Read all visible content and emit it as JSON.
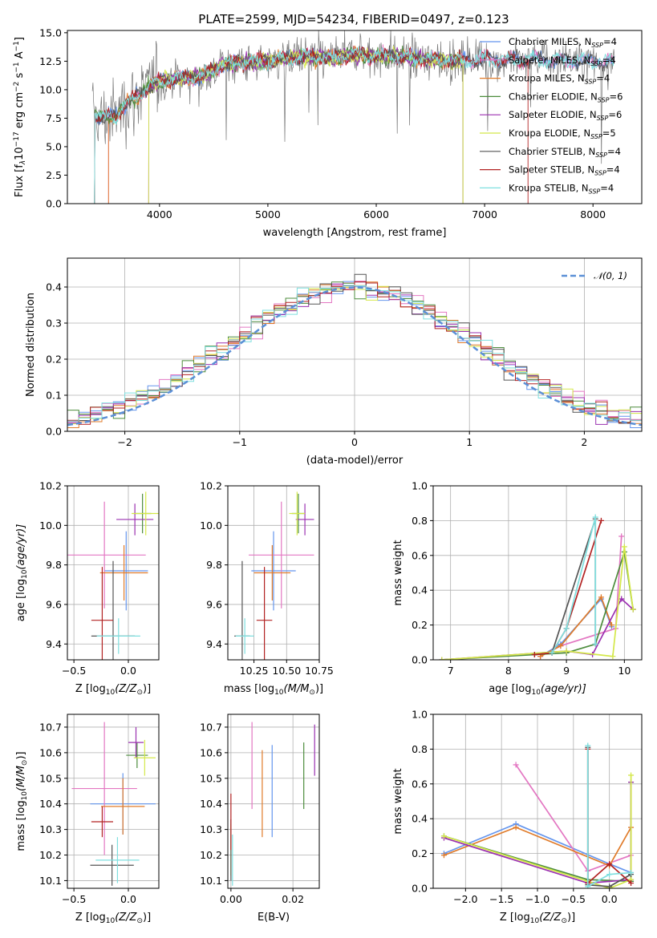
{
  "title": "PLATE=2599, MJD=54234, FIBERID=0497, z=0.123",
  "colors": {
    "chabrier_miles": "#6495ed",
    "salpeter_miles": "#e377c2",
    "kroupa_miles": "#e07b2a",
    "chabrier_elodie": "#4c8c3c",
    "salpeter_elodie": "#9b30b0",
    "kroupa_elodie": "#d4e84a",
    "chabrier_stelib": "#555555",
    "salpeter_stelib": "#b22222",
    "kroupa_stelib": "#7fdfdf"
  },
  "chart_data": [
    {
      "type": "line",
      "xlabel": "wavelength [Angstrom, rest frame]",
      "ylabel": "Flux [f$_\\lambda$10$^{-17}$ erg cm$^{-2}$ s$^{-1}$ A$^{-1}$]",
      "ylabel_main": "Flux [f",
      "ylabel_sub1": "λ",
      "ylabel_mid1": "10",
      "ylabel_sup1": "−17",
      "ylabel_mid2": " erg cm",
      "ylabel_sup2": "−2",
      "ylabel_mid3": " s",
      "ylabel_sup3": "−1",
      "ylabel_mid4": " A",
      "ylabel_sup4": "−1",
      "ylabel_end": "]",
      "xlim": [
        3150,
        8450
      ],
      "ylim": [
        0,
        15.2
      ],
      "xticks": [
        "4000",
        "5000",
        "6000",
        "7000",
        "8000"
      ],
      "xtick_values": [
        4000,
        5000,
        6000,
        7000,
        8000
      ],
      "yticks": [
        "0.0",
        "2.5",
        "5.0",
        "7.5",
        "10.0",
        "12.5",
        "15.0"
      ],
      "ytick_values": [
        0,
        2.5,
        5,
        7.5,
        10,
        12.5,
        15
      ],
      "x_range": [
        3380,
        8200
      ],
      "continuum": {
        "x": [
          3380,
          3500,
          3600,
          3700,
          3800,
          3900,
          4000,
          4200,
          4400,
          4600,
          4800,
          5000,
          5200,
          5400,
          5600,
          5800,
          6000,
          6200,
          6400,
          6600,
          6800,
          7000,
          7200,
          7400,
          7600,
          7800,
          8000,
          8200
        ],
        "y": [
          7.8,
          7.5,
          7.8,
          8.8,
          9.5,
          10.3,
          10.8,
          11.0,
          11.2,
          12.3,
          12.4,
          12.5,
          12.8,
          12.9,
          12.8,
          13.1,
          12.9,
          13.0,
          12.7,
          12.6,
          12.6,
          12.7,
          12.6,
          12.7,
          12.6,
          12.6,
          12.5,
          12.4
        ]
      },
      "legend_placement": "upper right",
      "legend": [
        {
          "main": "Chabrier MILES, N",
          "sub": "SSP",
          "end": "=4",
          "key": "chabrier_miles"
        },
        {
          "main": "Salpeter MILES, N",
          "sub": "SSP",
          "end": "=4",
          "key": "salpeter_miles"
        },
        {
          "main": "Kroupa MILES, N",
          "sub": "SSP",
          "end": "=4",
          "key": "kroupa_miles"
        },
        {
          "main": "Chabrier ELODIE, N",
          "sub": "SSP",
          "end": "=6",
          "key": "chabrier_elodie"
        },
        {
          "main": "Salpeter ELODIE, N",
          "sub": "SSP",
          "end": "=6",
          "key": "salpeter_elodie"
        },
        {
          "main": "Kroupa ELODIE, N",
          "sub": "SSP",
          "end": "=5",
          "key": "kroupa_elodie"
        },
        {
          "main": "Chabrier STELIB, N",
          "sub": "SSP",
          "end": "=4",
          "key": "chabrier_stelib"
        },
        {
          "main": "Salpeter STELIB, N",
          "sub": "SSP",
          "end": "=4",
          "key": "salpeter_stelib"
        },
        {
          "main": "Kroupa STELIB, N",
          "sub": "SSP",
          "end": "=4",
          "key": "kroupa_stelib"
        }
      ]
    },
    {
      "type": "histogram",
      "xlabel": "(data-model)/error",
      "ylabel": "Normed distribution",
      "xlim": [
        -2.5,
        2.5
      ],
      "ylim": [
        0,
        0.48
      ],
      "xticks": [
        "−2",
        "−1",
        "0",
        "1",
        "2"
      ],
      "xtick_values": [
        -2,
        -1,
        0,
        1,
        2
      ],
      "yticks": [
        "0.0",
        "0.1",
        "0.2",
        "0.3",
        "0.4"
      ],
      "ytick_values": [
        0,
        0.1,
        0.2,
        0.3,
        0.4
      ],
      "legend_main": "𝒩(0, 1)",
      "legend_placement": "upper right",
      "bin_width": 0.1,
      "bins_start": -2.5,
      "gaussian": {
        "mean": 0,
        "sigma": 1
      }
    },
    {
      "type": "errorbar",
      "xlabel": "Z [log$_{10}$(Z/Z$_\\odot$)]",
      "xlabel_main": "Z [log",
      "xlabel_sub": "10",
      "xlabel_mid": "(Z/Z",
      "xlabel_sub2": "⊙",
      "xlabel_end": ")]",
      "ylabel": "age  [log$_{10}$(age/yr)]",
      "ylabel_main": "age  [log",
      "ylabel_sub": "10",
      "ylabel_end": "(age/yr)]",
      "xlim": [
        -0.56,
        0.28
      ],
      "ylim": [
        9.32,
        10.2
      ],
      "xticks": [
        "−0.5",
        "0.0"
      ],
      "xtick_values": [
        -0.5,
        0.0
      ],
      "yticks": [
        "9.4",
        "9.6",
        "9.8",
        "10.0",
        "10.2"
      ],
      "ytick_values": [
        9.4,
        9.6,
        9.8,
        10.0,
        10.2
      ],
      "points": [
        {
          "key": "chabrier_miles",
          "x": -0.02,
          "xerr": 0.2,
          "y": 9.77,
          "yerr": 0.2
        },
        {
          "key": "salpeter_miles",
          "x": -0.22,
          "xerr": 0.38,
          "y": 9.85,
          "yerr": 0.27
        },
        {
          "key": "kroupa_miles",
          "x": -0.04,
          "xerr": 0.22,
          "y": 9.76,
          "yerr": 0.14
        },
        {
          "key": "chabrier_elodie",
          "x": 0.13,
          "xerr": 0.08,
          "y": 10.06,
          "yerr": 0.1
        },
        {
          "key": "salpeter_elodie",
          "x": 0.06,
          "xerr": 0.17,
          "y": 10.03,
          "yerr": 0.08
        },
        {
          "key": "kroupa_elodie",
          "x": 0.16,
          "xerr": 0.13,
          "y": 10.06,
          "yerr": 0.11
        },
        {
          "key": "chabrier_stelib",
          "x": -0.14,
          "xerr": 0.2,
          "y": 9.44,
          "yerr": 0.38
        },
        {
          "key": "salpeter_stelib",
          "x": -0.24,
          "xerr": 0.1,
          "y": 9.52,
          "yerr": 0.27
        },
        {
          "key": "kroupa_stelib",
          "x": -0.09,
          "xerr": 0.2,
          "y": 9.44,
          "yerr": 0.09
        }
      ]
    },
    {
      "type": "errorbar",
      "xlabel": "mass [log$_{10}$(M/M$_\\odot$)]",
      "xlabel_main": "mass [log",
      "xlabel_sub": "10",
      "xlabel_mid": "(M/M",
      "xlabel_sub2": "⊙",
      "xlabel_end": ")]",
      "xlim": [
        10.05,
        10.75
      ],
      "ylim": [
        9.32,
        10.2
      ],
      "xticks": [
        "10.25",
        "10.50",
        "10.75"
      ],
      "xtick_values": [
        10.25,
        10.5,
        10.75
      ],
      "yticks": [
        "9.4",
        "9.6",
        "9.8",
        "10.0",
        "10.2"
      ],
      "ytick_values": [
        9.4,
        9.6,
        9.8,
        10.0,
        10.2
      ],
      "points": [
        {
          "key": "chabrier_miles",
          "x": 10.4,
          "xerr": 0.17,
          "y": 9.77,
          "yerr": 0.2
        },
        {
          "key": "salpeter_miles",
          "x": 10.46,
          "xerr": 0.25,
          "y": 9.85,
          "yerr": 0.27
        },
        {
          "key": "kroupa_miles",
          "x": 10.39,
          "xerr": 0.14,
          "y": 9.76,
          "yerr": 0.14
        },
        {
          "key": "chabrier_elodie",
          "x": 10.59,
          "xerr": 0.05,
          "y": 10.06,
          "yerr": 0.1
        },
        {
          "key": "salpeter_elodie",
          "x": 10.64,
          "xerr": 0.07,
          "y": 10.03,
          "yerr": 0.08
        },
        {
          "key": "kroupa_elodie",
          "x": 10.58,
          "xerr": 0.06,
          "y": 10.06,
          "yerr": 0.11
        },
        {
          "key": "chabrier_stelib",
          "x": 10.16,
          "xerr": 0.06,
          "y": 9.44,
          "yerr": 0.38
        },
        {
          "key": "salpeter_stelib",
          "x": 10.33,
          "xerr": 0.06,
          "y": 9.52,
          "yerr": 0.27
        },
        {
          "key": "kroupa_stelib",
          "x": 10.18,
          "xerr": 0.07,
          "y": 9.44,
          "yerr": 0.09
        }
      ]
    },
    {
      "type": "line",
      "xlabel": "age  [log$_{10}$(age/yr)]",
      "xlabel_main": "age  [log",
      "xlabel_sub": "10",
      "xlabel_end": "(age/yr)]",
      "ylabel": "mass weight",
      "xlim": [
        6.7,
        10.3
      ],
      "ylim": [
        0,
        1.0
      ],
      "xticks": [
        "7",
        "8",
        "9",
        "10"
      ],
      "xtick_values": [
        7,
        8,
        9,
        10
      ],
      "yticks": [
        "0.0",
        "0.2",
        "0.4",
        "0.6",
        "0.8",
        "1.0"
      ],
      "ytick_values": [
        0,
        0.2,
        0.4,
        0.6,
        0.8,
        1.0
      ],
      "series": [
        {
          "key": "chabrier_miles",
          "x": [
            8.55,
            8.9,
            9.6,
            9.78
          ],
          "y": [
            0.02,
            0.09,
            0.35,
            0.19
          ]
        },
        {
          "key": "salpeter_miles",
          "x": [
            8.55,
            8.9,
            9.85,
            9.95
          ],
          "y": [
            0.02,
            0.08,
            0.18,
            0.71
          ]
        },
        {
          "key": "kroupa_miles",
          "x": [
            8.55,
            8.9,
            9.6,
            9.78
          ],
          "y": [
            0.02,
            0.08,
            0.36,
            0.2
          ]
        },
        {
          "key": "chabrier_elodie",
          "x": [
            6.85,
            9.0,
            9.5,
            10.0,
            10.15
          ],
          "y": [
            0.0,
            0.04,
            0.09,
            0.62,
            0.29
          ]
        },
        {
          "key": "salpeter_elodie",
          "x": [
            6.85,
            9.0,
            9.45,
            9.95,
            10.15
          ],
          "y": [
            0.0,
            0.05,
            0.03,
            0.35,
            0.29
          ]
        },
        {
          "key": "kroupa_elodie",
          "x": [
            6.85,
            9.0,
            9.8,
            10.0,
            10.15
          ],
          "y": [
            0.0,
            0.05,
            0.02,
            0.65,
            0.29
          ]
        },
        {
          "key": "chabrier_stelib",
          "x": [
            8.45,
            8.75,
            9.5,
            9.5
          ],
          "y": [
            0.03,
            0.04,
            0.81,
            0.09
          ]
        },
        {
          "key": "salpeter_stelib",
          "x": [
            8.45,
            8.75,
            9.0,
            9.6
          ],
          "y": [
            0.03,
            0.04,
            0.18,
            0.8
          ]
        },
        {
          "key": "kroupa_stelib",
          "x": [
            8.75,
            9.0,
            9.5,
            9.5
          ],
          "y": [
            0.04,
            0.18,
            0.82,
            0.09
          ]
        }
      ]
    },
    {
      "type": "errorbar",
      "xlabel": "Z [log$_{10}$(Z/Z$_\\odot$)]",
      "xlabel_main": "Z [log",
      "xlabel_sub": "10",
      "xlabel_mid": "(Z/Z",
      "xlabel_sub2": "⊙",
      "xlabel_end": ")]",
      "ylabel": "mass [log$_{10}$(M/M$_\\odot$)]",
      "ylabel_main": "mass [log",
      "ylabel_sub": "10",
      "ylabel_mid": "(M/M",
      "ylabel_sub2": "⊙",
      "ylabel_end": ")]",
      "xlim": [
        -0.56,
        0.28
      ],
      "ylim": [
        10.07,
        10.75
      ],
      "xticks": [
        "−0.5",
        "0.0"
      ],
      "xtick_values": [
        -0.5,
        0.0
      ],
      "yticks": [
        "10.1",
        "10.2",
        "10.3",
        "10.4",
        "10.5",
        "10.6",
        "10.7"
      ],
      "ytick_values": [
        10.1,
        10.2,
        10.3,
        10.4,
        10.5,
        10.6,
        10.7
      ],
      "points": [
        {
          "key": "chabrier_miles",
          "x": -0.05,
          "xerr": 0.3,
          "y": 10.4,
          "yerr": 0.12
        },
        {
          "key": "salpeter_miles",
          "x": -0.22,
          "xerr": 0.3,
          "y": 10.46,
          "yerr": 0.26
        },
        {
          "key": "kroupa_miles",
          "x": -0.05,
          "xerr": 0.2,
          "y": 10.39,
          "yerr": 0.11
        },
        {
          "key": "chabrier_elodie",
          "x": 0.08,
          "xerr": 0.1,
          "y": 10.59,
          "yerr": 0.05
        },
        {
          "key": "salpeter_elodie",
          "x": 0.07,
          "xerr": 0.07,
          "y": 10.64,
          "yerr": 0.06
        },
        {
          "key": "kroupa_elodie",
          "x": 0.15,
          "xerr": 0.1,
          "y": 10.58,
          "yerr": 0.07
        },
        {
          "key": "chabrier_stelib",
          "x": -0.15,
          "xerr": 0.2,
          "y": 10.16,
          "yerr": 0.08
        },
        {
          "key": "salpeter_stelib",
          "x": -0.24,
          "xerr": 0.1,
          "y": 10.33,
          "yerr": 0.06
        },
        {
          "key": "kroupa_stelib",
          "x": -0.1,
          "xerr": 0.2,
          "y": 10.18,
          "yerr": 0.09
        }
      ]
    },
    {
      "type": "errorbar",
      "xlabel": "E(B-V)",
      "xlim": [
        -0.001,
        0.0285
      ],
      "ylim": [
        10.07,
        10.75
      ],
      "xticks": [
        "0.00",
        "0.02"
      ],
      "xtick_values": [
        0.0,
        0.02
      ],
      "yticks": [
        "10.1",
        "10.2",
        "10.3",
        "10.4",
        "10.5",
        "10.6",
        "10.7"
      ],
      "ytick_values": [
        10.1,
        10.2,
        10.3,
        10.4,
        10.5,
        10.6,
        10.7
      ],
      "points": [
        {
          "key": "chabrier_miles",
          "x": 0.0133,
          "y": 10.45,
          "yerr": 0.18
        },
        {
          "key": "salpeter_miles",
          "x": 0.0068,
          "y": 10.55,
          "yerr": 0.17
        },
        {
          "key": "kroupa_miles",
          "x": 0.0101,
          "y": 10.44,
          "yerr": 0.17
        },
        {
          "key": "chabrier_elodie",
          "x": 0.0235,
          "y": 10.51,
          "yerr": 0.13
        },
        {
          "key": "salpeter_elodie",
          "x": 0.027,
          "y": 10.61,
          "yerr": 0.1
        },
        {
          "key": "kroupa_elodie",
          "x": 0.0,
          "y": 10.22,
          "yerr": 0.1
        },
        {
          "key": "chabrier_stelib",
          "x": 0.0,
          "y": 10.22,
          "yerr": 0.12
        },
        {
          "key": "salpeter_stelib",
          "x": 0.0,
          "y": 10.33,
          "yerr": 0.11
        },
        {
          "key": "kroupa_stelib",
          "x": 0.0005,
          "y": 10.18,
          "yerr": 0.1
        }
      ]
    },
    {
      "type": "line",
      "xlabel": "Z [log$_{10}$(Z/Z$_\\odot$)]",
      "xlabel_main": "Z [log",
      "xlabel_sub": "10",
      "xlabel_mid": "(Z/Z",
      "xlabel_sub2": "⊙",
      "xlabel_end": ")]",
      "ylabel": "mass weight",
      "xlim": [
        -2.45,
        0.45
      ],
      "ylim": [
        0,
        1.0
      ],
      "xticks": [
        "−2.0",
        "−1.5",
        "−1.0",
        "−0.5",
        "0.0"
      ],
      "xtick_values": [
        -2.0,
        -1.5,
        -1.0,
        -0.5,
        0.0
      ],
      "yticks": [
        "0.0",
        "0.2",
        "0.4",
        "0.6",
        "0.8",
        "1.0"
      ],
      "ytick_values": [
        0,
        0.2,
        0.4,
        0.6,
        0.8,
        1.0
      ],
      "series": [
        {
          "key": "chabrier_miles",
          "x": [
            -2.3,
            -1.3,
            0.0,
            0.3
          ],
          "y": [
            0.2,
            0.37,
            0.14,
            0.09
          ]
        },
        {
          "key": "salpeter_miles",
          "x": [
            -1.3,
            -0.3,
            0.3
          ],
          "y": [
            0.71,
            0.1,
            0.19
          ]
        },
        {
          "key": "kroupa_miles",
          "x": [
            -2.3,
            -1.3,
            0.0,
            0.3
          ],
          "y": [
            0.19,
            0.35,
            0.13,
            0.35
          ]
        },
        {
          "key": "chabrier_elodie",
          "x": [
            -2.3,
            -0.3,
            0.3,
            0.3
          ],
          "y": [
            0.3,
            0.05,
            0.04,
            0.61
          ]
        },
        {
          "key": "salpeter_elodie",
          "x": [
            -2.3,
            -0.3,
            0.3,
            0.3
          ],
          "y": [
            0.29,
            0.03,
            0.05,
            0.61
          ]
        },
        {
          "key": "kroupa_elodie",
          "x": [
            -2.3,
            -0.3,
            0.0,
            0.3,
            0.3
          ],
          "y": [
            0.3,
            0.04,
            0.0,
            0.05,
            0.65
          ]
        },
        {
          "key": "chabrier_stelib",
          "x": [
            -0.3,
            -0.3,
            0.0,
            0.3
          ],
          "y": [
            0.81,
            0.02,
            0.01,
            0.08
          ]
        },
        {
          "key": "salpeter_stelib",
          "x": [
            -0.3,
            -0.3,
            0.0,
            0.3
          ],
          "y": [
            0.8,
            0.03,
            0.14,
            0.03
          ]
        },
        {
          "key": "kroupa_stelib",
          "x": [
            -0.3,
            -0.3,
            0.0,
            0.3
          ],
          "y": [
            0.82,
            0.01,
            0.08,
            0.09
          ]
        }
      ]
    }
  ]
}
